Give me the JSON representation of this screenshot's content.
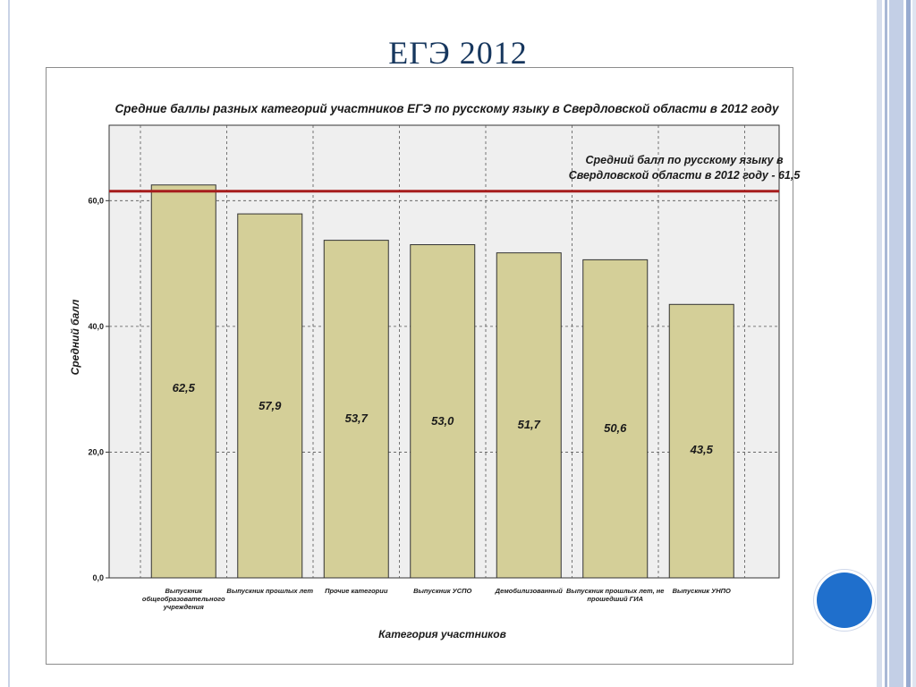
{
  "slide": {
    "title": "ЕГЭ 2012"
  },
  "colors": {
    "title": "#17375e",
    "bar_fill": "#d4cf98",
    "bar_stroke": "#333333",
    "plot_bg": "#efefef",
    "reference_line": "#a61c1c",
    "accent_dot": "#1f6fcc"
  },
  "chart_data": {
    "type": "bar",
    "title": "Средние баллы разных категорий участников ЕГЭ по русскому языку в Свердловской области в 2012 году",
    "xlabel": "Категория участников",
    "ylabel": "Средний балл",
    "ylim": [
      0,
      72
    ],
    "yticks": [
      "0,0",
      "20,0",
      "40,0",
      "60,0"
    ],
    "categories": [
      "Выпускник общеобразовательного учреждения",
      "Выпускник прошлых лет",
      "Прочие категории",
      "Выпускник УСПО",
      "Демобилизованный",
      "Выпускник прошлых лет, не прошедший ГИА",
      "Выпускник УНПО"
    ],
    "values": [
      62.5,
      57.9,
      53.7,
      53.0,
      51.7,
      50.6,
      43.5
    ],
    "value_labels": [
      "62,5",
      "57,9",
      "53,7",
      "53,0",
      "51,7",
      "50,6",
      "43,5"
    ],
    "reference_line": {
      "value": 61.5,
      "label_lines": [
        "Средний балл по русскому языку в",
        "Свердловской области в 2012 году - 61,5"
      ]
    },
    "grid": true
  }
}
